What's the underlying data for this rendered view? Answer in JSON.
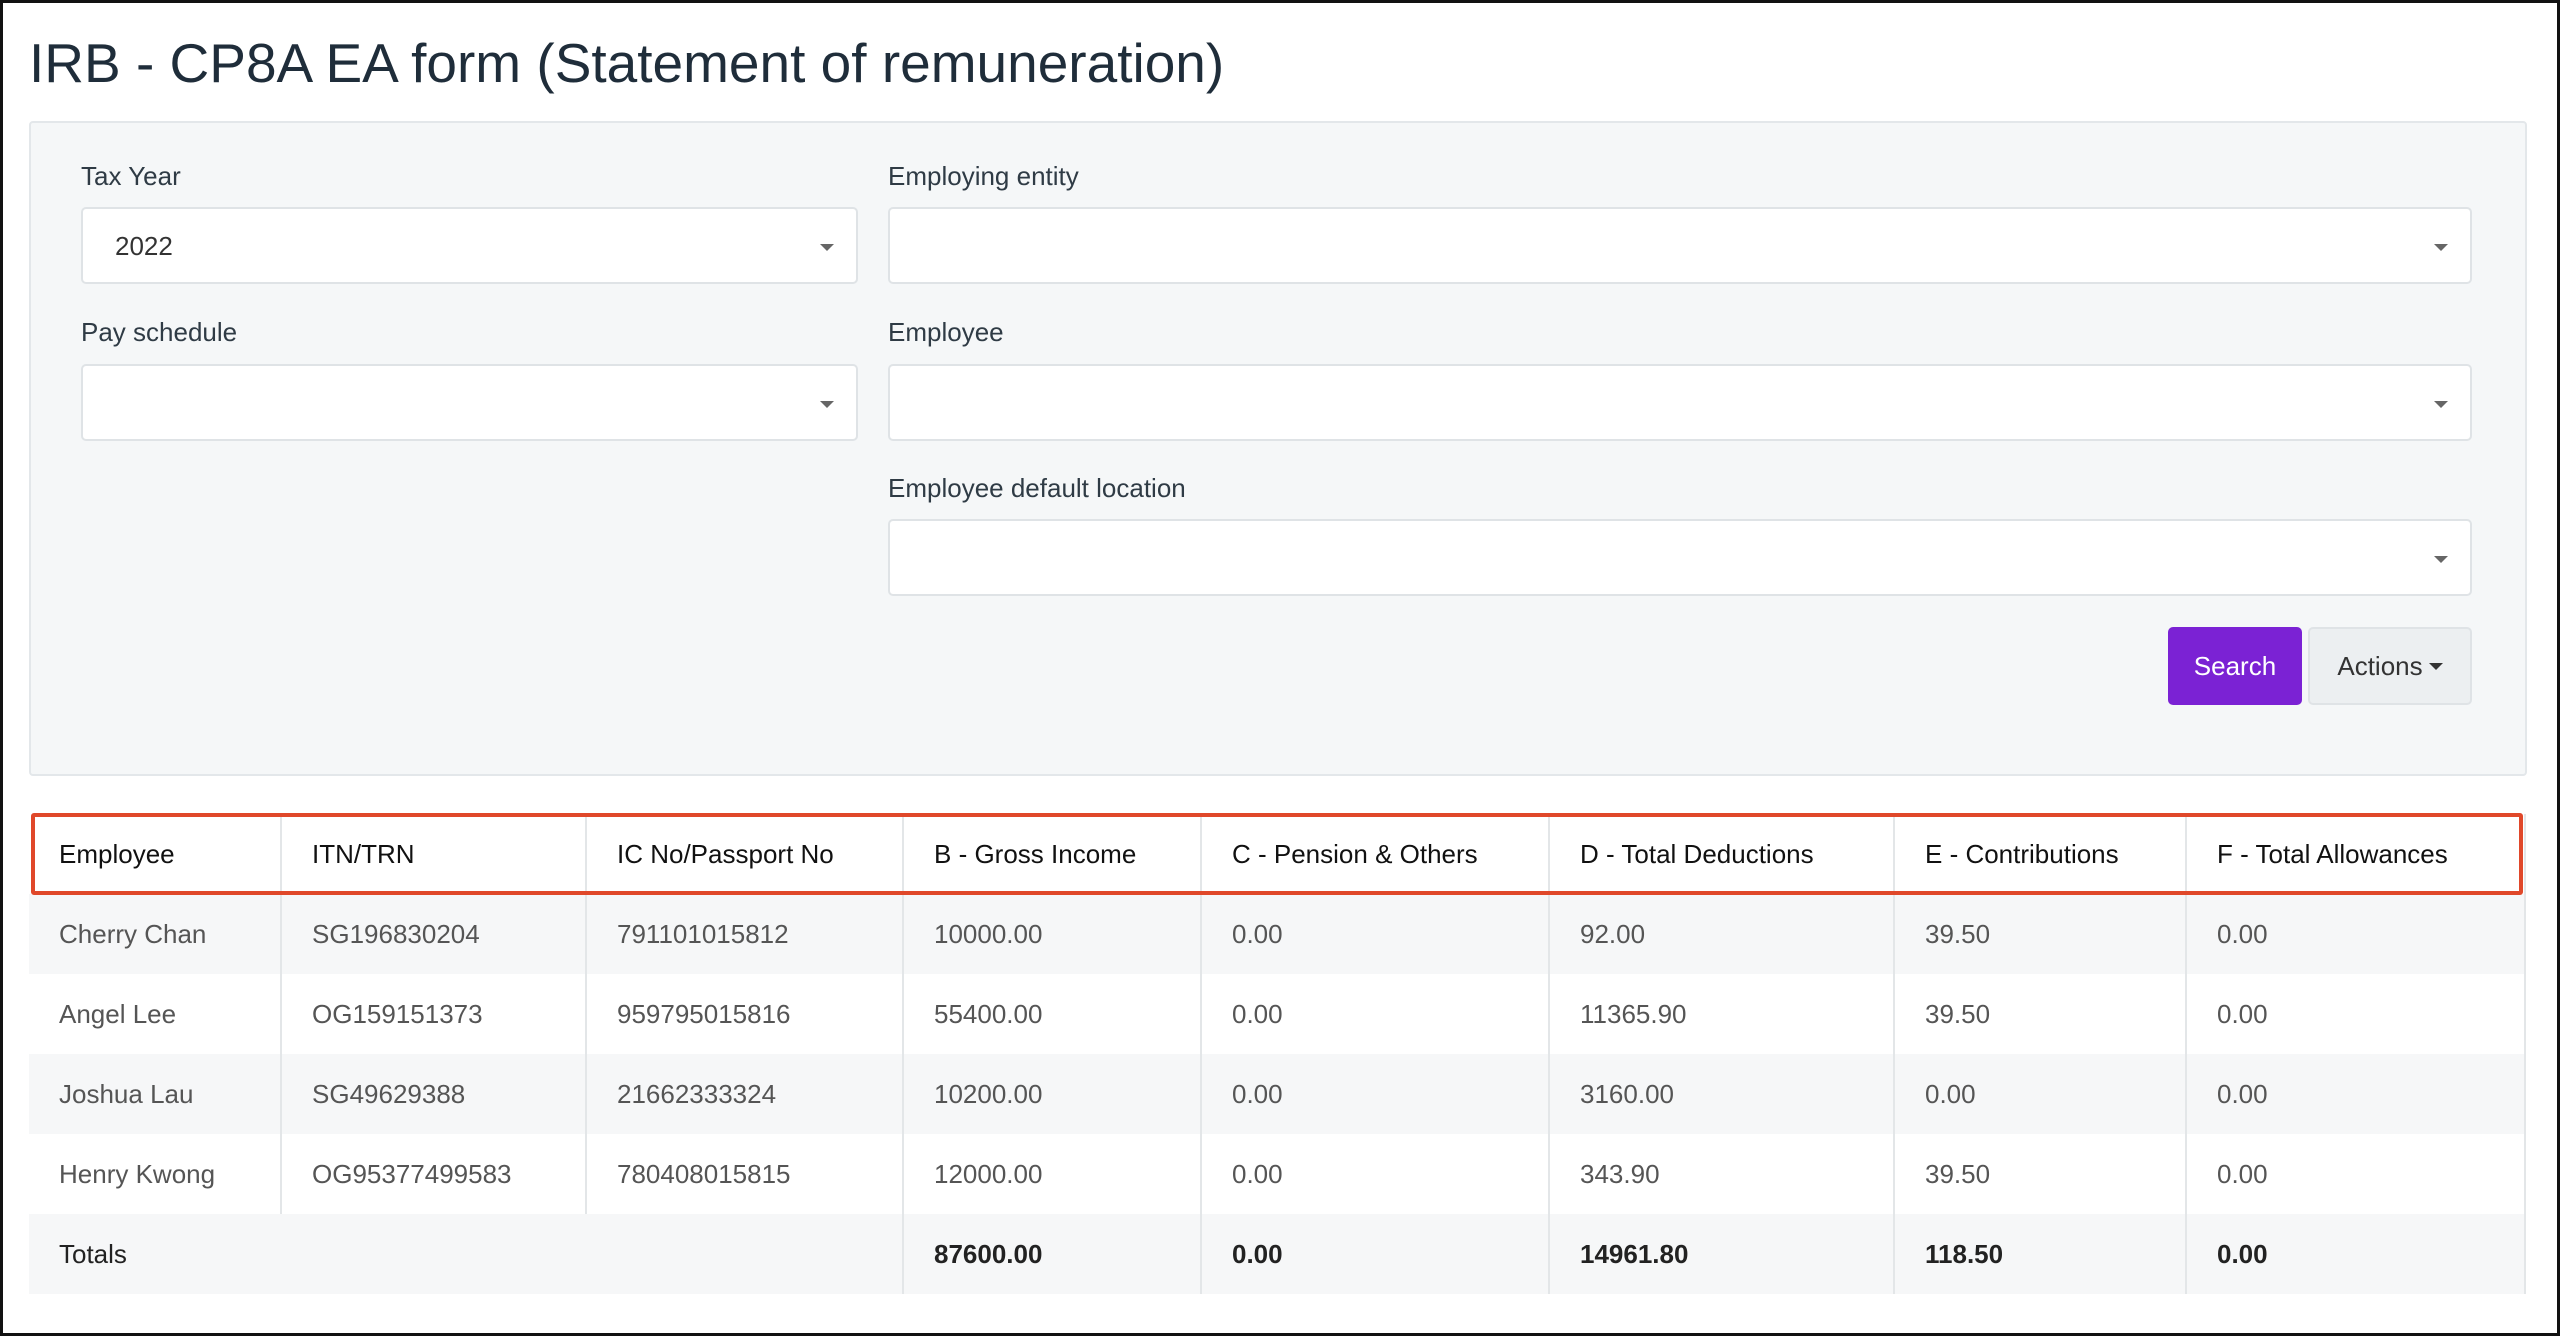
{
  "header": {
    "title": "IRB - CP8A EA form (Statement of remuneration)"
  },
  "filters": [
    {
      "label": "Tax Year",
      "value": "2022"
    },
    {
      "label": "Employing entity"
    },
    {
      "label": "Pay schedule"
    },
    {
      "label": "Employee"
    },
    {
      "label": "Employee default location"
    }
  ],
  "buttons": {
    "search": "Search",
    "actions": "Actions"
  },
  "table": {
    "columns": [
      "Employee",
      "ITN/TRN",
      "IC No/Passport No",
      "B - Gross Income",
      "C - Pension & Others",
      "D - Total Deductions",
      "E - Contributions",
      "F - Total Allowances"
    ],
    "rows": [
      [
        "Cherry Chan",
        "SG196830204",
        "791101015812",
        "10000.00",
        "0.00",
        "92.00",
        "39.50",
        "0.00"
      ],
      [
        "Angel Lee",
        "OG159151373",
        "959795015816",
        "55400.00",
        "0.00",
        "11365.90",
        "39.50",
        "0.00"
      ],
      [
        "Joshua Lau",
        "SG49629388",
        "21662333324",
        "10200.00",
        "0.00",
        "3160.00",
        "0.00",
        "0.00"
      ],
      [
        "Henry Kwong",
        "OG95377499583",
        "780408015815",
        "12000.00",
        "0.00",
        "343.90",
        "39.50",
        "0.00"
      ]
    ],
    "totals": {
      "label": "Totals",
      "values": [
        "87600.00",
        "0.00",
        "14961.80",
        "118.50",
        "0.00"
      ]
    }
  }
}
